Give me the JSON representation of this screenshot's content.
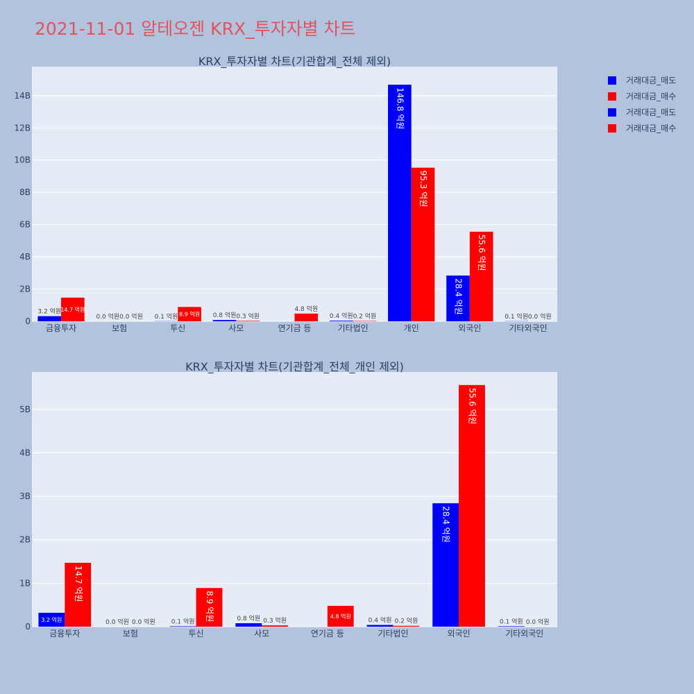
{
  "page": {
    "title": "2021-11-01 알테오젠 KRX_투자자별 차트"
  },
  "colors": {
    "sell": "#0000ff",
    "buy": "#ff0000",
    "plot_bg": "#e5ecf6",
    "page_bg": "#b0c4de"
  },
  "legend": {
    "position": "top-right",
    "items": [
      {
        "label": "거래대금_매도",
        "color": "#0000ff"
      },
      {
        "label": "거래대금_매수",
        "color": "#ff0000"
      },
      {
        "label": "거래대금_매도",
        "color": "#0000ff"
      },
      {
        "label": "거래대금_매수",
        "color": "#ff0000"
      }
    ]
  },
  "chart_data": [
    {
      "type": "bar",
      "title": "KRX_투자자별 차트(기관합계_전체 제외)",
      "categories": [
        "금융투자",
        "보험",
        "투신",
        "사모",
        "연기금 등",
        "기타법인",
        "개인",
        "외국인",
        "기타외국인"
      ],
      "ylim": [
        0,
        15.8
      ],
      "yticks": [
        0,
        2,
        4,
        6,
        8,
        10,
        12,
        14
      ],
      "ytick_labels": [
        "0",
        "2B",
        "4B",
        "6B",
        "8B",
        "10B",
        "12B",
        "14B"
      ],
      "grid": true,
      "series": [
        {
          "name": "거래대금_매도",
          "values": [
            0.32,
            0.0,
            0.01,
            0.08,
            0.0,
            0.04,
            14.68,
            2.84,
            0.01
          ],
          "labels": [
            "3.2 억원",
            "0.0 억원",
            "0.1 억원",
            "0.8 억원",
            "",
            "0.4 억원",
            "146.8 억원",
            "28.4 억원",
            "0.1 억원"
          ]
        },
        {
          "name": "거래대금_매수",
          "values": [
            1.47,
            0.0,
            0.89,
            0.03,
            0.48,
            0.02,
            9.53,
            5.56,
            0.0
          ],
          "labels": [
            "14.7 억원",
            "0.0 억원",
            "8.9 억원",
            "0.3 억원",
            "4.8 억원",
            "0.2 억원",
            "95.3 억원",
            "55.6 억원",
            "0.0 억원"
          ]
        }
      ]
    },
    {
      "type": "bar",
      "title": "KRX_투자자별 차트(기관합계_전체_개인 제외)",
      "categories": [
        "금융투자",
        "보험",
        "투신",
        "사모",
        "연기금 등",
        "기타법인",
        "외국인",
        "기타외국인"
      ],
      "ylim": [
        0,
        5.86
      ],
      "yticks": [
        0,
        1,
        2,
        3,
        4,
        5
      ],
      "ytick_labels": [
        "0",
        "1B",
        "2B",
        "3B",
        "4B",
        "5B"
      ],
      "grid": true,
      "series": [
        {
          "name": "거래대금_매도",
          "values": [
            0.32,
            0.0,
            0.01,
            0.08,
            0.0,
            0.04,
            2.84,
            0.01
          ],
          "labels": [
            "3.2 억원",
            "0.0 억원",
            "0.1 억원",
            "0.8 억원",
            "",
            "0.4 억원",
            "28.4 억원",
            "0.1 억원"
          ]
        },
        {
          "name": "거래대금_매수",
          "values": [
            1.47,
            0.0,
            0.89,
            0.03,
            0.48,
            0.02,
            5.56,
            0.0
          ],
          "labels": [
            "14.7 억원",
            "0.0 억원",
            "8.9 억원",
            "0.3 억원",
            "4.8 억원",
            "0.2 억원",
            "55.6 억원",
            "0.0 억원"
          ]
        }
      ]
    }
  ]
}
